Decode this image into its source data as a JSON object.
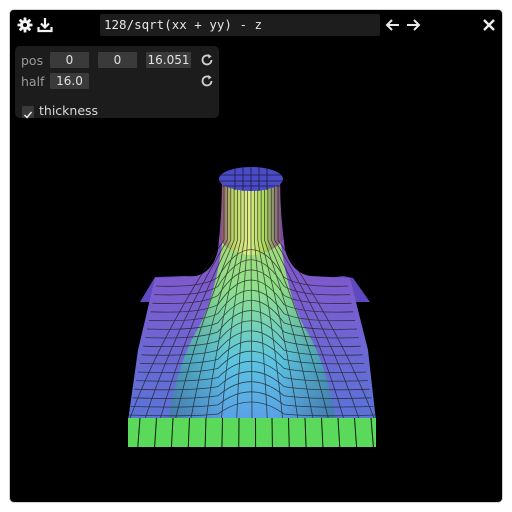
{
  "titlebar": {
    "expression": "128/sqrt(xx + yy) - z",
    "icons": [
      "gear-icon",
      "download-icon",
      "arrow-left-icon",
      "arrow-right-icon",
      "close-icon"
    ]
  },
  "controls": {
    "pos_label": "pos",
    "pos_x": "0",
    "pos_y": "0",
    "pos_z": "16.051",
    "half_label": "half",
    "half_value": "16.0",
    "thickness_label": "thickness",
    "thickness_checked": true
  },
  "colors": {
    "background": "#000000",
    "panel": "#1c1c1c",
    "field": "#3a3a3a",
    "surface_base": "#5ad95a",
    "surface_cap": "#4b4bc8"
  }
}
